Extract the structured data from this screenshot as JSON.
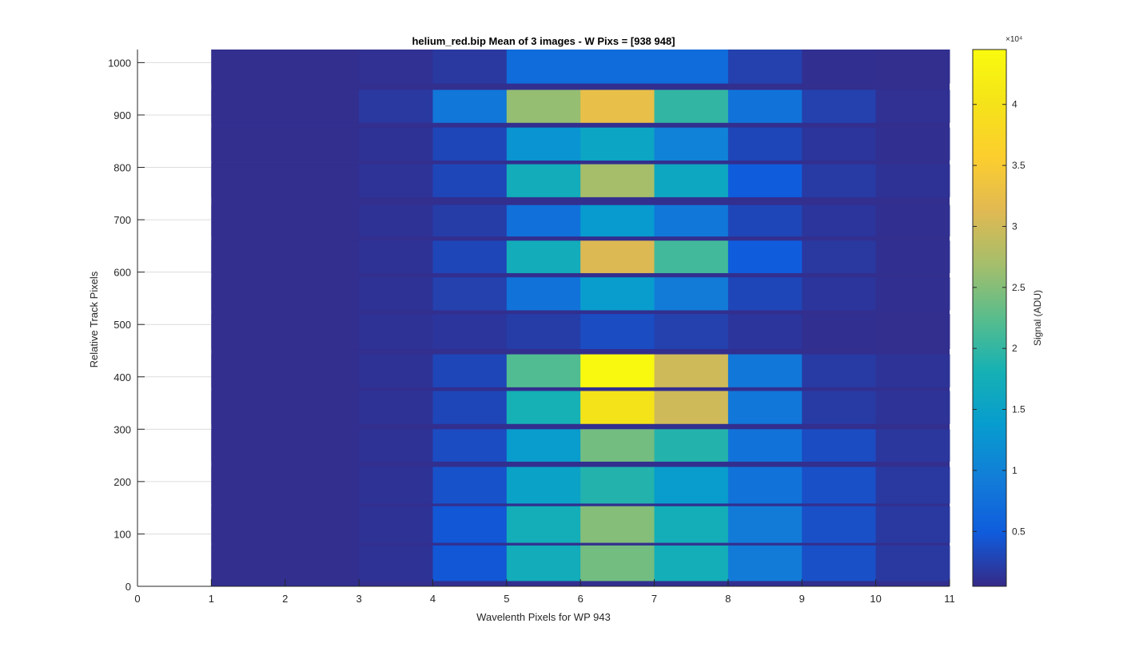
{
  "chart_data": {
    "type": "heatmap",
    "title": "helium_red.bip  Mean of 3 images - W Pixs = [938  948]",
    "xlabel": "Wavelenth Pixels for WP 943",
    "ylabel": "Relative Track Pixels",
    "colorbar_label": "Signal (ADU)",
    "colorbar_exponent_label": "×10⁴",
    "colormap": "parula",
    "xlim": [
      0,
      11
    ],
    "ylim": [
      0,
      1025
    ],
    "x_ticks": [
      0,
      1,
      2,
      3,
      4,
      5,
      6,
      7,
      8,
      9,
      10,
      11
    ],
    "y_ticks": [
      0,
      100,
      200,
      300,
      400,
      500,
      600,
      700,
      800,
      900,
      1000
    ],
    "clim": [
      500,
      44500
    ],
    "colorbar_ticks": [
      {
        "value": 0.5,
        "label": "0.5"
      },
      {
        "value": 1,
        "label": "1"
      },
      {
        "value": 1.5,
        "label": "1.5"
      },
      {
        "value": 2,
        "label": "2"
      },
      {
        "value": 2.5,
        "label": "2.5"
      },
      {
        "value": 3,
        "label": "3"
      },
      {
        "value": 3.5,
        "label": "3.5"
      },
      {
        "value": 4,
        "label": "4"
      }
    ],
    "grid": true,
    "columns": [
      {
        "x0": 1,
        "x1": 2
      },
      {
        "x0": 2,
        "x1": 3
      },
      {
        "x0": 3,
        "x1": 4
      },
      {
        "x0": 4,
        "x1": 5
      },
      {
        "x0": 5,
        "x1": 6
      },
      {
        "x0": 6,
        "x1": 7
      },
      {
        "x0": 7,
        "x1": 8
      },
      {
        "x0": 8,
        "x1": 9
      },
      {
        "x0": 9,
        "x1": 10
      },
      {
        "x0": 10,
        "x1": 11
      }
    ],
    "background_value": 900,
    "bands": [
      {
        "y0": 10,
        "y1": 78,
        "values": [
          900,
          900,
          1200,
          4500,
          17000,
          24000,
          17500,
          9000,
          3800,
          1800
        ]
      },
      {
        "y0": 83,
        "y1": 153,
        "values": [
          900,
          900,
          1200,
          4500,
          17500,
          25000,
          17500,
          9000,
          3800,
          1800
        ]
      },
      {
        "y0": 158,
        "y1": 228,
        "values": [
          900,
          900,
          1200,
          4000,
          15000,
          19000,
          14000,
          8000,
          3800,
          1800
        ]
      },
      {
        "y0": 238,
        "y1": 300,
        "values": [
          900,
          900,
          1200,
          3500,
          14000,
          24000,
          19000,
          8000,
          3500,
          1600
        ]
      },
      {
        "y0": 310,
        "y1": 373,
        "values": [
          900,
          900,
          1200,
          3000,
          18000,
          40000,
          30000,
          8500,
          2000,
          1300
        ]
      },
      {
        "y0": 380,
        "y1": 443,
        "values": [
          900,
          900,
          1200,
          3000,
          22000,
          44000,
          30000,
          8500,
          2000,
          1300
        ]
      },
      {
        "y0": 453,
        "y1": 520,
        "values": [
          900,
          900,
          1200,
          1500,
          2200,
          3500,
          2500,
          1500,
          1000,
          900
        ]
      },
      {
        "y0": 527,
        "y1": 590,
        "values": [
          900,
          900,
          1200,
          2500,
          8000,
          14000,
          9000,
          3000,
          1500,
          1000
        ]
      },
      {
        "y0": 598,
        "y1": 660,
        "values": [
          900,
          900,
          1200,
          3000,
          17000,
          31000,
          21000,
          5000,
          1800,
          1000
        ]
      },
      {
        "y0": 668,
        "y1": 728,
        "values": [
          900,
          900,
          1200,
          2200,
          7500,
          13500,
          8500,
          3000,
          1500,
          1000
        ]
      },
      {
        "y0": 743,
        "y1": 806,
        "values": [
          900,
          900,
          1300,
          3000,
          17000,
          27000,
          16000,
          5000,
          2000,
          1200
        ]
      },
      {
        "y0": 813,
        "y1": 876,
        "values": [
          900,
          900,
          1200,
          3000,
          12500,
          15500,
          10000,
          3000,
          1500,
          1000
        ]
      },
      {
        "y0": 885,
        "y1": 948,
        "values": [
          900,
          900,
          1800,
          8500,
          26000,
          32500,
          20000,
          8000,
          2500,
          1100
        ]
      },
      {
        "y0": 960,
        "y1": 1025,
        "values": [
          900,
          900,
          1100,
          1800,
          7000,
          7000,
          7000,
          2500,
          1000,
          900
        ]
      }
    ]
  }
}
